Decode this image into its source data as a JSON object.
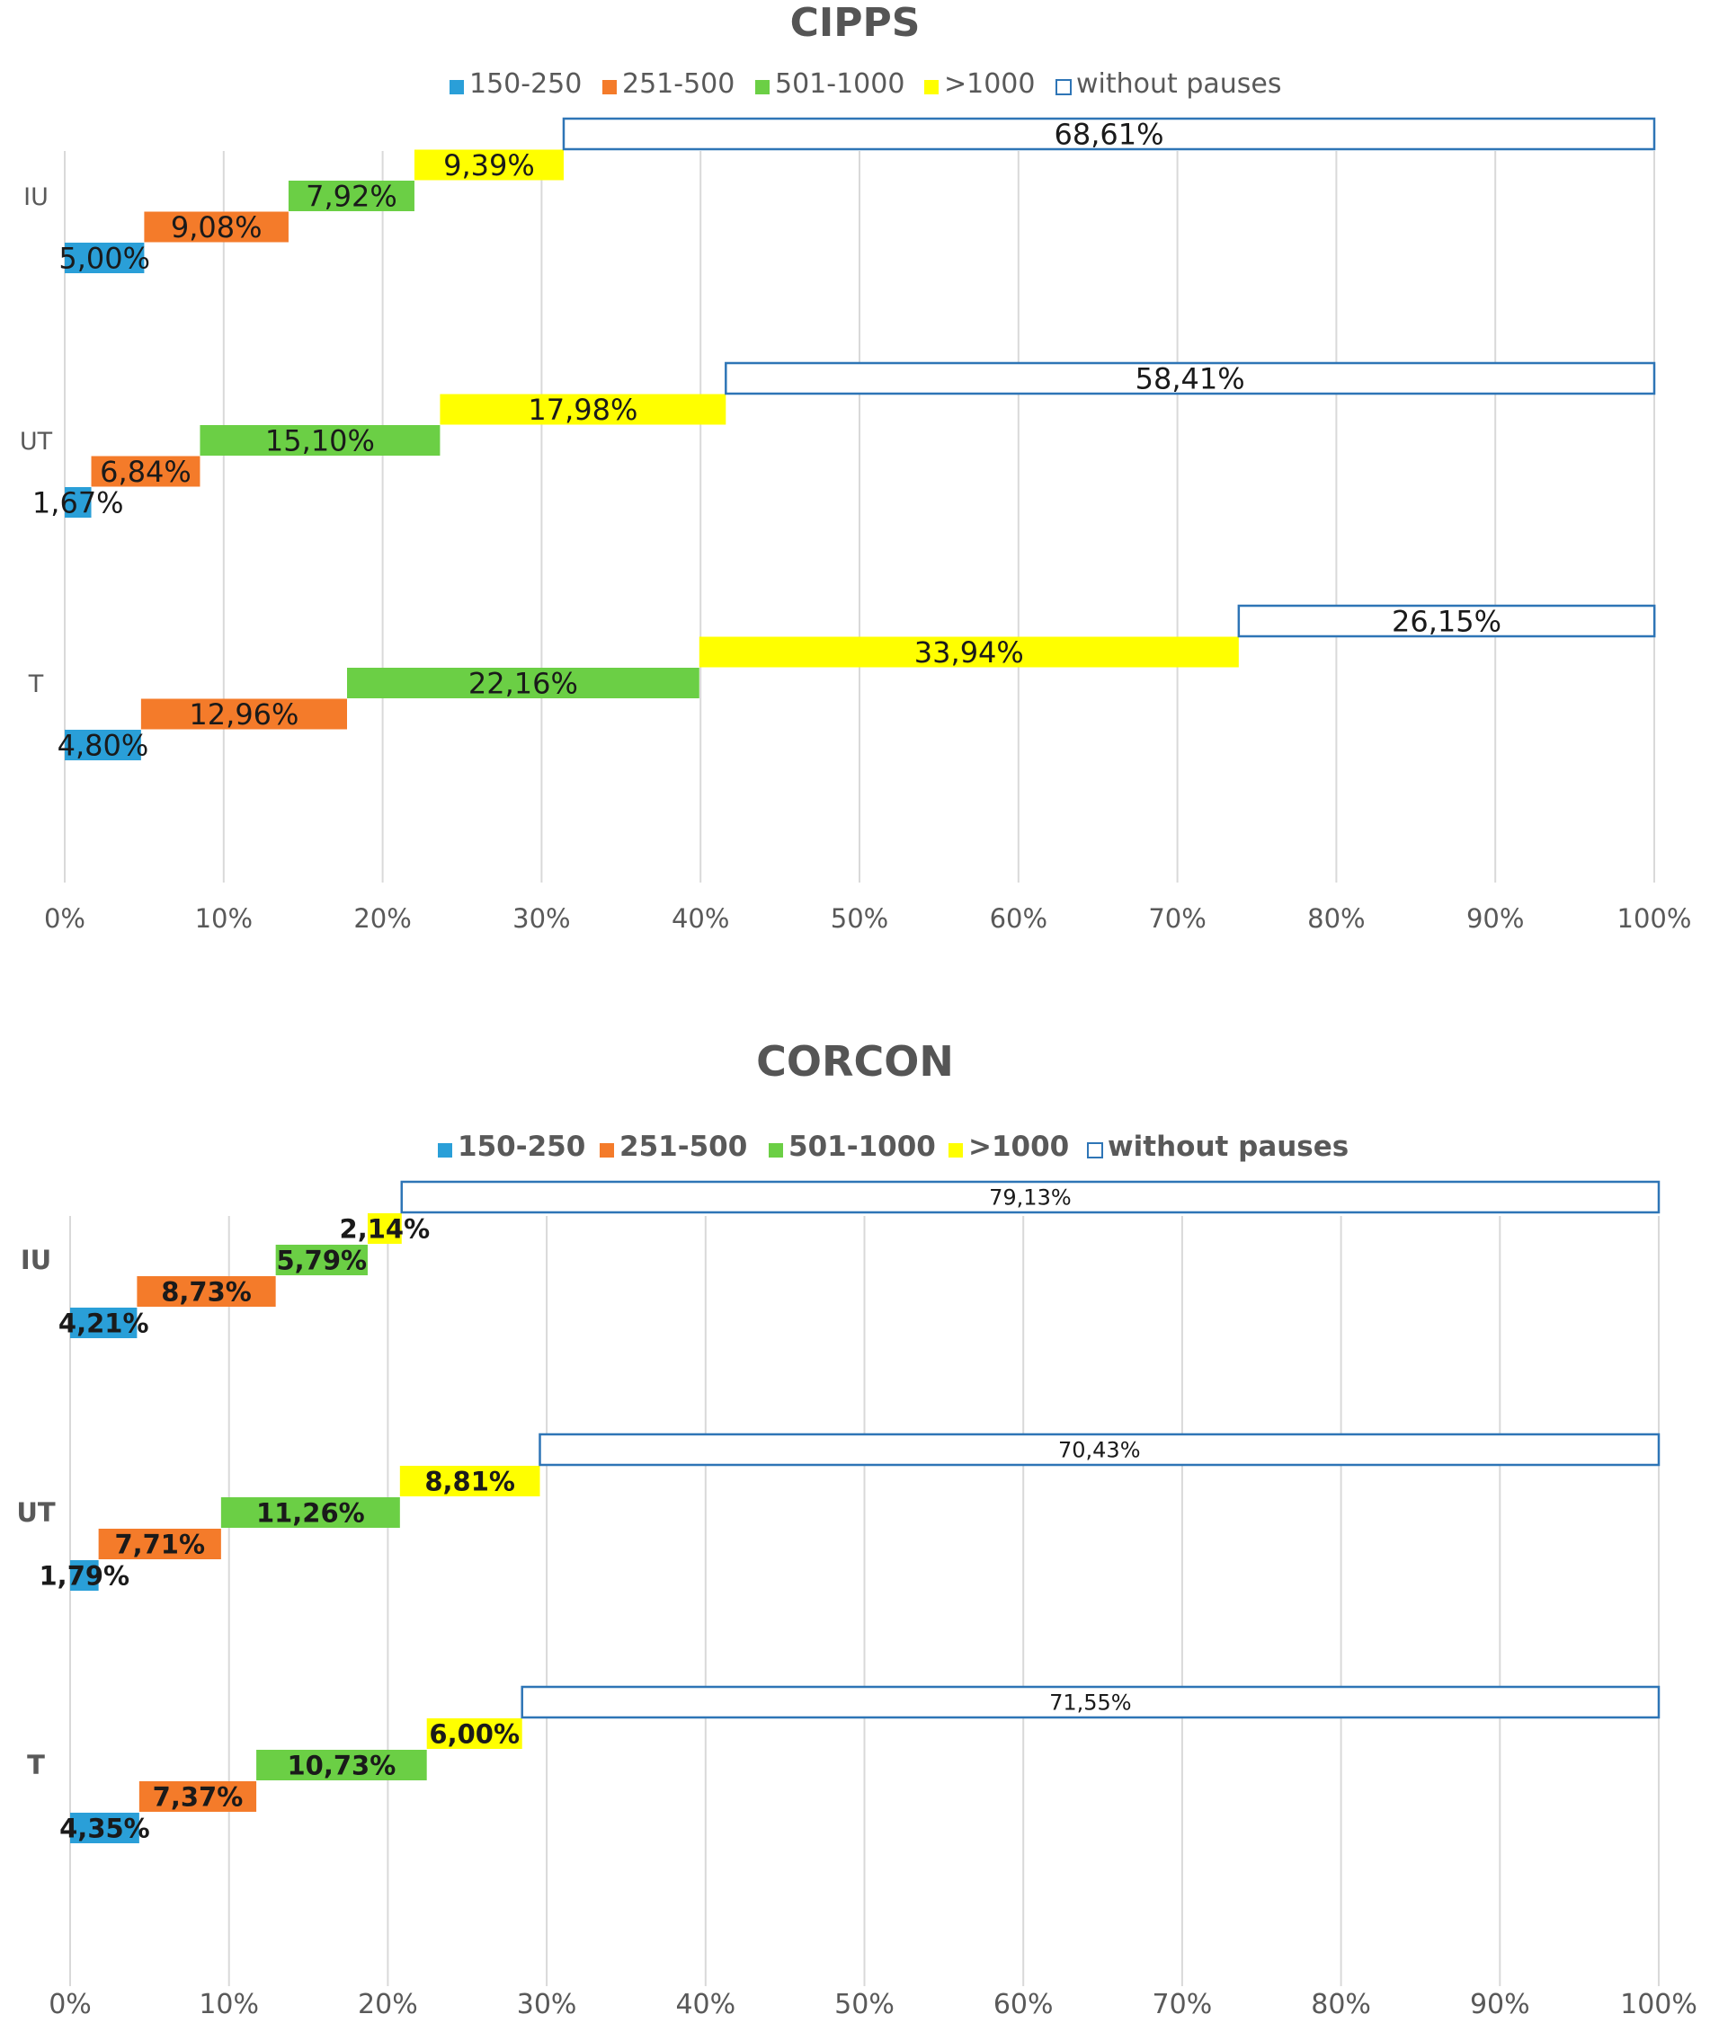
{
  "chart_data": [
    {
      "type": "bar",
      "orientation": "horizontal",
      "layout": "cascading segments",
      "title": "CIPPS",
      "categories": [
        "IU",
        "UT",
        "T"
      ],
      "series": [
        {
          "name": "150-250",
          "color": "#2a9fd8",
          "values": [
            5.0,
            1.67,
            4.8
          ],
          "labels": [
            "5,00%",
            "1,67%",
            "4,80%"
          ]
        },
        {
          "name": "251-500",
          "color": "#f47b2a",
          "values": [
            9.08,
            6.84,
            12.96
          ],
          "labels": [
            "9,08%",
            "6,84%",
            "12,96%"
          ]
        },
        {
          "name": "501-1000",
          "color": "#6bcf45",
          "values": [
            7.92,
            15.1,
            22.16
          ],
          "labels": [
            "7,92%",
            "15,10%",
            "22,16%"
          ]
        },
        {
          "name": ">1000",
          "color": "#ffff00",
          "values": [
            9.39,
            17.98,
            33.94
          ],
          "labels": [
            "9,39%",
            "17,98%",
            "33,94%"
          ]
        },
        {
          "name": "without pauses",
          "color": "#2e75b6",
          "outlined": true,
          "values": [
            68.61,
            58.41,
            26.15
          ],
          "labels": [
            "68,61%",
            "58,41%",
            "26,15%"
          ]
        }
      ],
      "xlim": [
        0,
        100
      ],
      "xticks": [
        "0%",
        "10%",
        "20%",
        "30%",
        "40%",
        "50%",
        "60%",
        "70%",
        "80%",
        "90%",
        "100%"
      ],
      "grid": true,
      "legend_position": "top"
    },
    {
      "type": "bar",
      "orientation": "horizontal",
      "layout": "cascading segments",
      "title": "CORCON",
      "categories": [
        "IU",
        "UT",
        "T"
      ],
      "series": [
        {
          "name": "150-250",
          "color": "#2a9fd8",
          "values": [
            4.21,
            1.79,
            4.35
          ],
          "labels": [
            "4,21%",
            "1,79%",
            "4,35%"
          ]
        },
        {
          "name": "251-500",
          "color": "#f47b2a",
          "values": [
            8.73,
            7.71,
            7.37
          ],
          "labels": [
            "8,73%",
            "7,71%",
            "7,37%"
          ]
        },
        {
          "name": "501-1000",
          "color": "#6bcf45",
          "values": [
            5.79,
            11.26,
            10.73
          ],
          "labels": [
            "5,79%",
            "11,26%",
            "10,73%"
          ]
        },
        {
          "name": ">1000",
          "color": "#ffff00",
          "values": [
            2.14,
            8.81,
            6.0
          ],
          "labels": [
            "2,14%",
            "8,81%",
            "6,00%"
          ]
        },
        {
          "name": "without pauses",
          "color": "#2e75b6",
          "outlined": true,
          "values": [
            79.13,
            70.43,
            71.55
          ],
          "labels": [
            "79,13%",
            "70,43%",
            "71,55%"
          ]
        }
      ],
      "xlim": [
        0,
        100
      ],
      "xticks": [
        "0%",
        "10%",
        "20%",
        "30%",
        "40%",
        "50%",
        "60%",
        "70%",
        "80%",
        "90%",
        "100%"
      ],
      "grid": true,
      "legend_position": "top"
    }
  ]
}
